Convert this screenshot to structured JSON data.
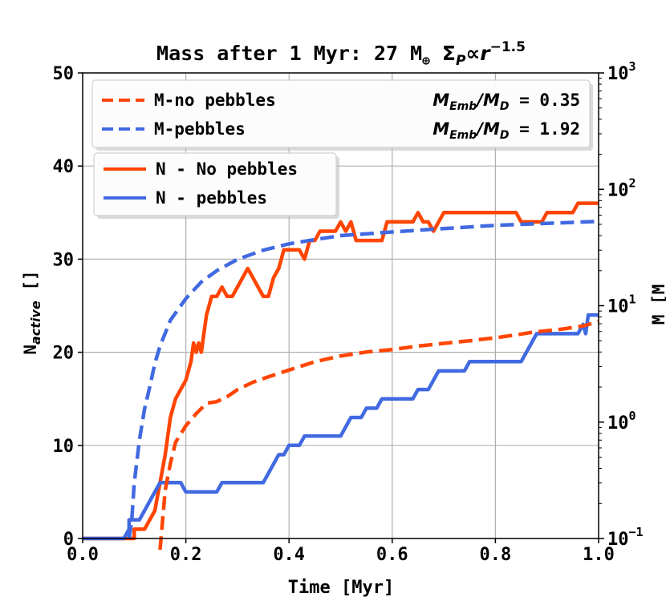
{
  "chart_data": {
    "type": "line",
    "title": {
      "prefix": "Mass after 1 Myr: 27 M",
      "earth_symbol": "⊕",
      "sigma": "Σ",
      "sigma_sub": "P",
      "prop": "∝",
      "r": "r",
      "exponent": "−1.5"
    },
    "xlabel": "Time [Myr]",
    "ylabel_left": {
      "main": "N",
      "sub": "active",
      "unit": " []"
    },
    "ylabel_right": "M [M",
    "xlim": [
      0.0,
      1.0
    ],
    "ylim_left": [
      0,
      50
    ],
    "ylim_right_log10": [
      -1,
      3
    ],
    "x_ticks": [
      "0.0",
      "0.2",
      "0.4",
      "0.6",
      "0.8",
      "1.0"
    ],
    "x_tick_values": [
      0.0,
      0.2,
      0.4,
      0.6,
      0.8,
      1.0
    ],
    "y_ticks_left": [
      "0",
      "10",
      "20",
      "30",
      "40",
      "50"
    ],
    "y_tick_values_left": [
      0,
      10,
      20,
      30,
      40,
      50
    ],
    "y_ticks_right": [
      {
        "base": "10",
        "exp": "−1",
        "log": -1
      },
      {
        "base": "10",
        "exp": "0",
        "log": 0
      },
      {
        "base": "10",
        "exp": "1",
        "log": 1
      },
      {
        "base": "10",
        "exp": "2",
        "log": 2
      },
      {
        "base": "10",
        "exp": "3",
        "log": 3
      }
    ],
    "grid": true,
    "legend_mass": {
      "location": "upper",
      "entries": [
        {
          "label": "M-no pebbles",
          "ratio_label": "M_Emb/M_D",
          "ratio_value": "= 0.35",
          "color": "#ff4500",
          "style": "dashed"
        },
        {
          "label": "M-pebbles",
          "ratio_label": "M_Emb/M_D",
          "ratio_value": "= 1.92",
          "color": "#4169e1",
          "style": "dashed"
        }
      ]
    },
    "legend_n": {
      "location": "upper-left",
      "entries": [
        {
          "label": "N - No pebbles",
          "color": "#ff4500",
          "style": "solid"
        },
        {
          "label": "N - pebbles",
          "color": "#4169e1",
          "style": "solid"
        }
      ]
    },
    "series": [
      {
        "name": "N - No pebbles",
        "axis": "left",
        "color": "#ff4500",
        "style": "solid",
        "points": [
          [
            0,
            0
          ],
          [
            0.09,
            0
          ],
          [
            0.1,
            0
          ],
          [
            0.1,
            1
          ],
          [
            0.12,
            1
          ],
          [
            0.13,
            2
          ],
          [
            0.14,
            3
          ],
          [
            0.15,
            6
          ],
          [
            0.16,
            9
          ],
          [
            0.17,
            13
          ],
          [
            0.18,
            15
          ],
          [
            0.19,
            16
          ],
          [
            0.2,
            17
          ],
          [
            0.21,
            19
          ],
          [
            0.215,
            21
          ],
          [
            0.22,
            20
          ],
          [
            0.225,
            21
          ],
          [
            0.23,
            20
          ],
          [
            0.24,
            24
          ],
          [
            0.25,
            26
          ],
          [
            0.26,
            26
          ],
          [
            0.27,
            27
          ],
          [
            0.28,
            26
          ],
          [
            0.29,
            26
          ],
          [
            0.3,
            27
          ],
          [
            0.31,
            28
          ],
          [
            0.32,
            29
          ],
          [
            0.33,
            28
          ],
          [
            0.34,
            27
          ],
          [
            0.35,
            26
          ],
          [
            0.36,
            26
          ],
          [
            0.37,
            28
          ],
          [
            0.38,
            29
          ],
          [
            0.39,
            31
          ],
          [
            0.42,
            31
          ],
          [
            0.43,
            30
          ],
          [
            0.44,
            32
          ],
          [
            0.45,
            32
          ],
          [
            0.46,
            33
          ],
          [
            0.49,
            33
          ],
          [
            0.5,
            34
          ],
          [
            0.51,
            33
          ],
          [
            0.52,
            34
          ],
          [
            0.53,
            32
          ],
          [
            0.58,
            32
          ],
          [
            0.59,
            34
          ],
          [
            0.64,
            34
          ],
          [
            0.65,
            35
          ],
          [
            0.66,
            34
          ],
          [
            0.67,
            34
          ],
          [
            0.68,
            33
          ],
          [
            0.69,
            34
          ],
          [
            0.7,
            35
          ],
          [
            0.84,
            35
          ],
          [
            0.85,
            34
          ],
          [
            0.89,
            34
          ],
          [
            0.9,
            35
          ],
          [
            0.95,
            35
          ],
          [
            0.96,
            36
          ],
          [
            1.0,
            36
          ]
        ]
      },
      {
        "name": "N - pebbles",
        "axis": "left",
        "color": "#4169e1",
        "style": "solid",
        "points": [
          [
            0,
            0
          ],
          [
            0.08,
            0
          ],
          [
            0.09,
            1
          ],
          [
            0.09,
            2
          ],
          [
            0.11,
            2
          ],
          [
            0.12,
            3
          ],
          [
            0.13,
            4
          ],
          [
            0.14,
            5
          ],
          [
            0.15,
            6
          ],
          [
            0.19,
            6
          ],
          [
            0.2,
            5
          ],
          [
            0.26,
            5
          ],
          [
            0.27,
            6
          ],
          [
            0.35,
            6
          ],
          [
            0.36,
            7
          ],
          [
            0.37,
            8
          ],
          [
            0.38,
            9
          ],
          [
            0.39,
            9
          ],
          [
            0.4,
            10
          ],
          [
            0.42,
            10
          ],
          [
            0.43,
            11
          ],
          [
            0.5,
            11
          ],
          [
            0.51,
            12
          ],
          [
            0.52,
            13
          ],
          [
            0.54,
            13
          ],
          [
            0.55,
            14
          ],
          [
            0.57,
            14
          ],
          [
            0.58,
            15
          ],
          [
            0.64,
            15
          ],
          [
            0.65,
            16
          ],
          [
            0.67,
            16
          ],
          [
            0.68,
            17
          ],
          [
            0.69,
            18
          ],
          [
            0.74,
            18
          ],
          [
            0.75,
            19
          ],
          [
            0.85,
            19
          ],
          [
            0.86,
            20
          ],
          [
            0.87,
            21
          ],
          [
            0.88,
            22
          ],
          [
            0.96,
            22
          ],
          [
            0.97,
            23
          ],
          [
            0.975,
            22
          ],
          [
            0.98,
            24
          ],
          [
            1.0,
            24
          ]
        ]
      },
      {
        "name": "M-no pebbles",
        "axis": "right",
        "color": "#ff4500",
        "style": "dashed",
        "points": [
          [
            0.15,
            0.08
          ],
          [
            0.16,
            0.26
          ],
          [
            0.17,
            0.44
          ],
          [
            0.18,
            0.67
          ],
          [
            0.2,
            0.93
          ],
          [
            0.22,
            1.18
          ],
          [
            0.24,
            1.45
          ],
          [
            0.26,
            1.5
          ],
          [
            0.28,
            1.65
          ],
          [
            0.3,
            1.9
          ],
          [
            0.33,
            2.2
          ],
          [
            0.36,
            2.45
          ],
          [
            0.4,
            2.8
          ],
          [
            0.45,
            3.3
          ],
          [
            0.5,
            3.7
          ],
          [
            0.55,
            4.0
          ],
          [
            0.6,
            4.2
          ],
          [
            0.65,
            4.5
          ],
          [
            0.7,
            4.75
          ],
          [
            0.75,
            5.0
          ],
          [
            0.8,
            5.3
          ],
          [
            0.85,
            5.7
          ],
          [
            0.87,
            5.9
          ],
          [
            0.9,
            6.1
          ],
          [
            0.93,
            6.3
          ],
          [
            0.95,
            6.5
          ],
          [
            0.97,
            6.7
          ],
          [
            1.0,
            7.3
          ]
        ]
      },
      {
        "name": "M-pebbles",
        "axis": "right",
        "color": "#4169e1",
        "style": "dashed",
        "points": [
          [
            0.09,
            0.1
          ],
          [
            0.095,
            0.14
          ],
          [
            0.1,
            0.3
          ],
          [
            0.11,
            0.7
          ],
          [
            0.12,
            1.3
          ],
          [
            0.13,
            2.0
          ],
          [
            0.14,
            3.2
          ],
          [
            0.15,
            4.5
          ],
          [
            0.17,
            7.5
          ],
          [
            0.2,
            11.5
          ],
          [
            0.23,
            16
          ],
          [
            0.26,
            20
          ],
          [
            0.3,
            25
          ],
          [
            0.35,
            30
          ],
          [
            0.4,
            34
          ],
          [
            0.45,
            37
          ],
          [
            0.5,
            40
          ],
          [
            0.6,
            43
          ],
          [
            0.7,
            46
          ],
          [
            0.8,
            49
          ],
          [
            0.9,
            51
          ],
          [
            1.0,
            53
          ]
        ]
      }
    ]
  }
}
